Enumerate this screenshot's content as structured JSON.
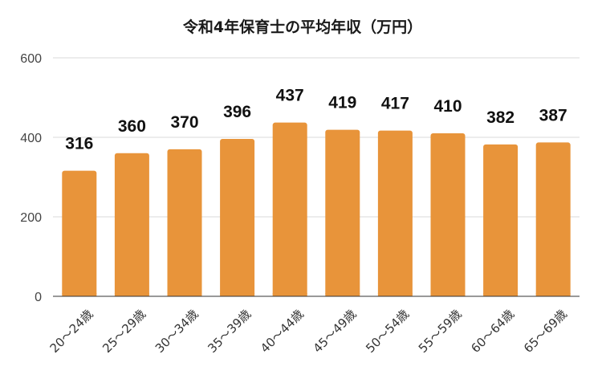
{
  "chart_data": {
    "type": "bar",
    "title": "令和4年保育士の平均年収（万円）",
    "xlabel": "",
    "ylabel": "",
    "categories": [
      "20～24歳",
      "25～29歳",
      "30～34歳",
      "35～39歳",
      "40～44歳",
      "45～49歳",
      "50～54歳",
      "55～59歳",
      "60～64歳",
      "65～69歳"
    ],
    "values": [
      316,
      360,
      370,
      396,
      437,
      419,
      417,
      410,
      382,
      387
    ],
    "data_labels": [
      "316",
      "360",
      "370",
      "396",
      "437",
      "419",
      "417",
      "410",
      "382",
      "387"
    ],
    "ylim": [
      0,
      600
    ],
    "y_ticks": [
      0,
      200,
      400,
      600
    ],
    "y_tick_labels": [
      "0",
      "200",
      "400",
      "600"
    ],
    "grid": true,
    "legend": "none",
    "bar_color": "#E8943A"
  }
}
